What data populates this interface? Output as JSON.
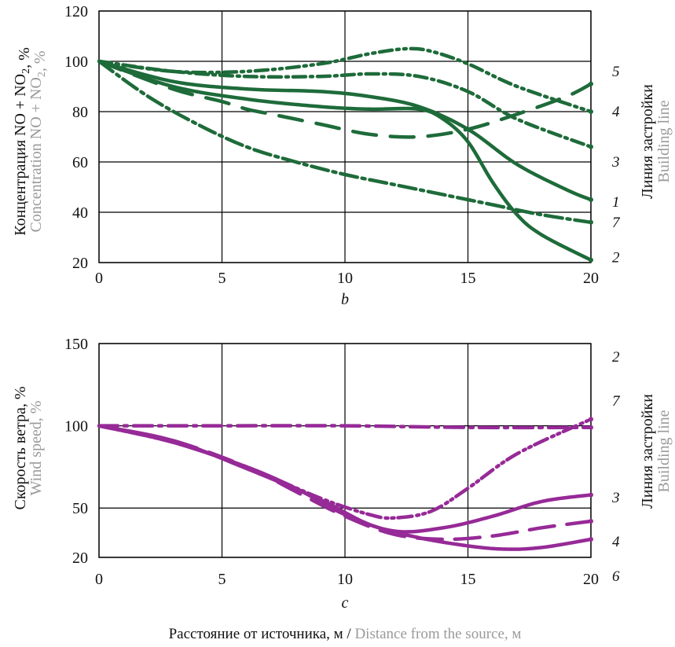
{
  "x_title": {
    "ru": "Расстояние от источника, м",
    "sep": " / ",
    "en": "Distance from the source, м"
  },
  "colors": {
    "green": "#1e6b3a",
    "purple": "#962a97",
    "gray_text": "#9a9a9a"
  },
  "chart_data": [
    {
      "panel_label": "b",
      "type": "line",
      "ylabel_ru": "Концентрация NO + NO₂, %",
      "ylabel_en": "Concentration NO + NO₂, %",
      "right_label_ru": "Линия застройки",
      "right_label_en": "Building line",
      "xlim": [
        0,
        20
      ],
      "ylim": [
        20,
        120
      ],
      "xticks": [
        0,
        5,
        10,
        15,
        20
      ],
      "yticks": [
        20,
        40,
        60,
        80,
        100,
        120
      ],
      "grid": true,
      "series": [
        {
          "name": "5",
          "label_y": 96,
          "dash": "16 6 3 6 3 6",
          "x": [
            0,
            3,
            6,
            9,
            11,
            12.5,
            13.5,
            15,
            17,
            20
          ],
          "y": [
            100,
            96,
            96,
            99,
            103,
            105,
            104,
            99,
            90,
            80
          ]
        },
        {
          "name": "4",
          "label_y": 80,
          "dash": "16 6 3 6",
          "x": [
            0,
            3,
            6,
            9,
            11,
            13,
            15,
            17,
            20
          ],
          "y": [
            100,
            96,
            94,
            94,
            95,
            94,
            88,
            77,
            66
          ]
        },
        {
          "name": "3",
          "label_y": 60,
          "dash": "30 18",
          "x": [
            0,
            3,
            5,
            6,
            7,
            9,
            11,
            13,
            15,
            17,
            19,
            20
          ],
          "y": [
            100,
            89,
            84,
            81,
            79,
            75,
            71,
            70,
            73,
            79,
            86,
            91
          ]
        },
        {
          "name": "1",
          "label_y": 44,
          "dash": "5 0",
          "x": [
            0,
            3,
            6,
            9,
            11,
            13,
            15,
            17,
            19,
            20
          ],
          "y": [
            100,
            92,
            89,
            88,
            86,
            82,
            73,
            59,
            49,
            45
          ]
        },
        {
          "name": "7",
          "label_y": 36,
          "dash": "22 6 4 6",
          "x": [
            0,
            2,
            4,
            6,
            8,
            10,
            12,
            14,
            16,
            18,
            20
          ],
          "y": [
            100,
            86,
            75,
            66,
            60,
            55,
            51,
            47,
            43,
            39,
            36
          ]
        },
        {
          "name": "2",
          "label_y": 22,
          "dash": "5 0",
          "x": [
            0,
            3,
            6,
            9,
            11,
            13,
            14,
            15,
            16,
            17,
            18,
            20
          ],
          "y": [
            100,
            90,
            85,
            82,
            81,
            81,
            77,
            68,
            52,
            39,
            31,
            21
          ]
        }
      ]
    },
    {
      "panel_label": "c",
      "type": "line",
      "ylabel_ru": "Скорость ветра, %",
      "ylabel_en": "Wind speed, %",
      "right_label_ru": "Линия застройки",
      "right_label_en": "Building line",
      "xlim": [
        0,
        20
      ],
      "ylim": [
        20,
        150
      ],
      "ytick_labels": [
        "20",
        "50",
        "100",
        "150"
      ],
      "grid": true,
      "series": [
        {
          "name": "2",
          "label_y": 2,
          "dash": "18 6 3 5 3 5",
          "x": [
            0,
            3,
            6,
            9,
            11,
            12,
            13.5,
            15,
            17,
            20
          ],
          "y": [
            100,
            90,
            75,
            56,
            46,
            44,
            48,
            62,
            83,
            104
          ]
        },
        {
          "name": "7",
          "label_y": 7,
          "dash": "24 8 4 8",
          "x": [
            0,
            5,
            10,
            15,
            20
          ],
          "y": [
            100,
            100,
            100,
            99,
            99
          ]
        },
        {
          "name": "3",
          "label_y": 3,
          "dash": "5 0",
          "x": [
            0,
            3,
            6,
            8,
            10,
            12,
            14,
            16,
            18,
            20
          ],
          "y": [
            100,
            90,
            75,
            62,
            46,
            36,
            38,
            45,
            54,
            58
          ]
        },
        {
          "name": "4",
          "label_y": 4,
          "dash": "32 16",
          "x": [
            0,
            3,
            6,
            8,
            10,
            12,
            14,
            16,
            18,
            20
          ],
          "y": [
            100,
            91,
            75,
            60,
            45,
            34,
            31,
            33,
            38,
            42
          ]
        },
        {
          "name": "6",
          "label_y": 6,
          "dash": "5 0",
          "x": [
            0,
            3,
            6,
            9,
            11,
            13,
            15,
            16.5,
            18,
            20
          ],
          "y": [
            100,
            91,
            74,
            55,
            40,
            32,
            27,
            25,
            26,
            31
          ]
        }
      ]
    }
  ]
}
